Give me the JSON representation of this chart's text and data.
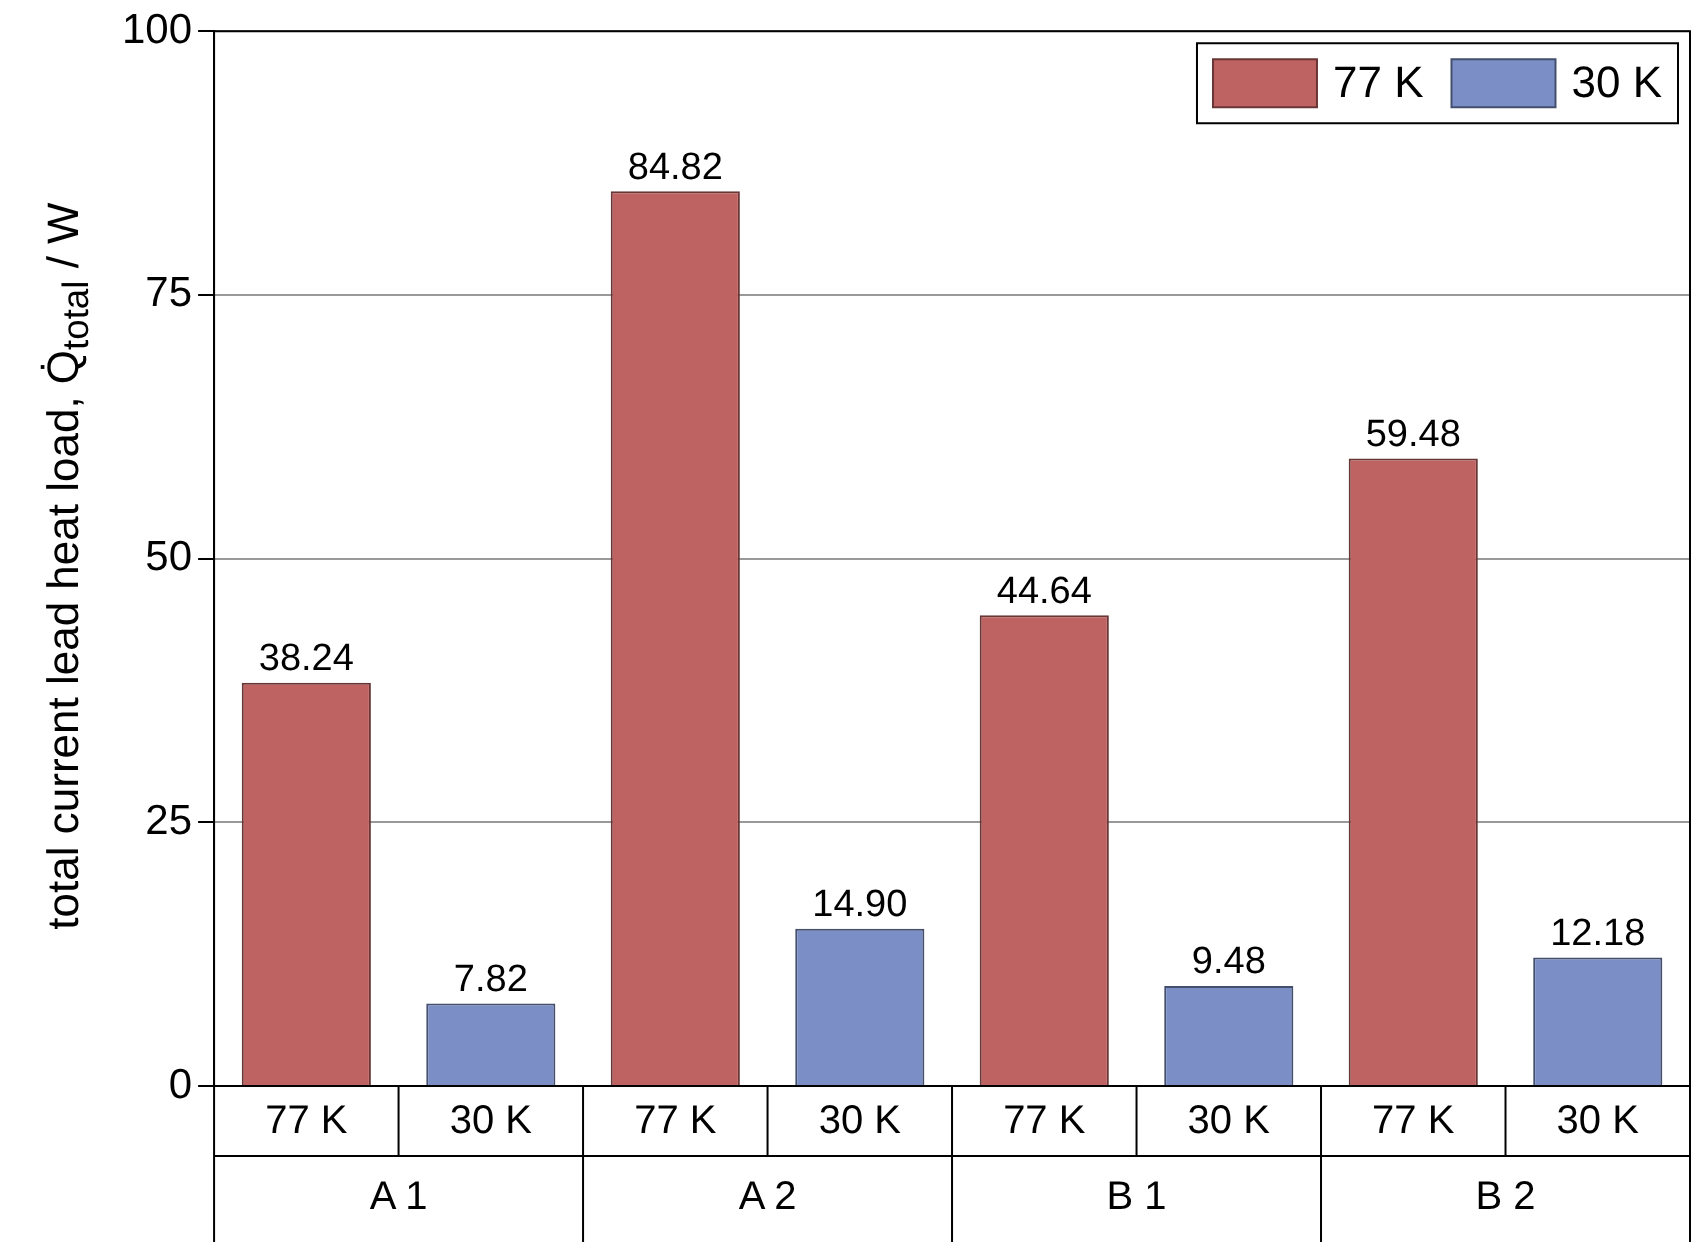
{
  "chart_data": {
    "type": "bar",
    "ylabel": "total current lead heat load, Q̇$_{total}$ / W",
    "categories": [
      "A 1",
      "A 2",
      "B 1",
      "B 2"
    ],
    "series": [
      {
        "name": "77 K",
        "color": "#bf6262",
        "values": [
          38.24,
          84.82,
          44.64,
          59.48
        ],
        "value_labels": [
          "38.24",
          "84.82",
          "44.64",
          "59.48"
        ]
      },
      {
        "name": "30 K",
        "color": "#7b8fc6",
        "values": [
          7.82,
          14.9,
          9.48,
          12.18
        ],
        "value_labels": [
          "7.82",
          "14.90",
          "9.48",
          "12.18"
        ]
      }
    ],
    "ylim": [
      0,
      100
    ],
    "yticks": [
      0,
      25,
      50,
      75,
      100
    ],
    "grid": "y",
    "legend": "top right"
  }
}
